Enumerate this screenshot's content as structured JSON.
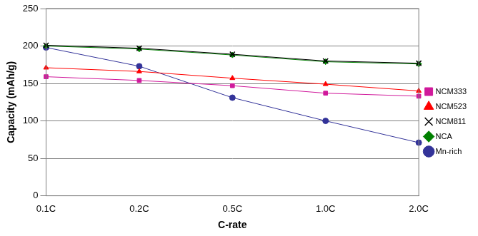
{
  "chart_data": {
    "type": "line",
    "x_label": "C-rate",
    "y_label": "Capacity (mAh/g)",
    "categories": [
      "0.1C",
      "0.2C",
      "0.5C",
      "1.0C",
      "2.0C"
    ],
    "series": [
      {
        "name": "NCM333",
        "color": "#d0199b",
        "marker": "square",
        "values": [
          159,
          154,
          147,
          137,
          133
        ]
      },
      {
        "name": "NCM523",
        "color": "#ff0000",
        "marker": "triangle",
        "values": [
          171,
          166,
          157,
          149,
          140
        ]
      },
      {
        "name": "NCM811",
        "color": "#000000",
        "marker": "x",
        "values": [
          201,
          197,
          189,
          180,
          177
        ]
      },
      {
        "name": "NCA",
        "color": "#008000",
        "marker": "diamond",
        "values": [
          200,
          196,
          188,
          179,
          176
        ]
      },
      {
        "name": "Mn-rich",
        "color": "#333399",
        "marker": "circle",
        "values": [
          198,
          173,
          131,
          100,
          71
        ]
      }
    ],
    "ylim": [
      0,
      250
    ],
    "yticks": [
      0,
      50,
      100,
      150,
      200,
      250
    ],
    "grid": true,
    "legend": "right"
  }
}
